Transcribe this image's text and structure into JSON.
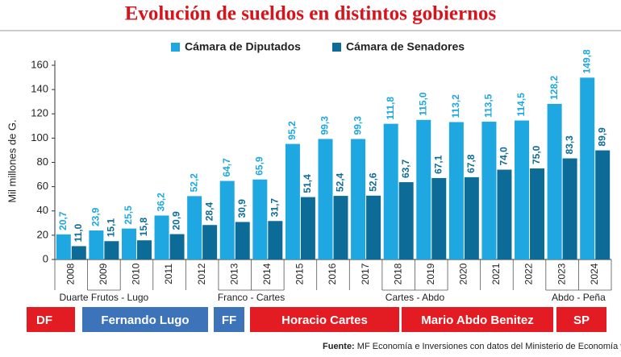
{
  "chart_data": {
    "type": "bar",
    "title": "Evolución de sueldos en distintos gobiernos",
    "y_label": "Mil millones de G.",
    "categories": [
      "2008",
      "2009",
      "2010",
      "2011",
      "2012",
      "2013",
      "2014",
      "2015",
      "2016",
      "2017",
      "2018",
      "2019",
      "2020",
      "2021",
      "2022",
      "2023",
      "2024"
    ],
    "series": [
      {
        "name": "Cámara de Diputados",
        "color": "#1ea7e0",
        "values": [
          20.7,
          23.9,
          25.5,
          36.2,
          52.2,
          64.7,
          65.9,
          95.2,
          99.3,
          99.3,
          111.8,
          115.0,
          113.2,
          113.5,
          114.5,
          128.2,
          149.8
        ],
        "value_labels": [
          "20,7",
          "23,9",
          "25,5",
          "36,2",
          "52,2",
          "64,7",
          "65,9",
          "95,2",
          "99,3",
          "99,3",
          "111,8",
          "115,0",
          "113,2",
          "113,5",
          "114,5",
          "128,2",
          "149,8"
        ]
      },
      {
        "name": "Cámara de Senadores",
        "color": "#0d6c97",
        "values": [
          11.0,
          15.1,
          15.8,
          20.9,
          28.4,
          30.9,
          31.7,
          51.4,
          52.4,
          52.6,
          63.7,
          67.1,
          67.8,
          74.0,
          75.0,
          83.3,
          89.9
        ],
        "value_labels": [
          "11,0",
          "15,1",
          "15,8",
          "20,9",
          "28,4",
          "30,9",
          "31,7",
          "51,4",
          "52,4",
          "52,6",
          "63,7",
          "67,1",
          "67,8",
          "74,0",
          "75,0",
          "83,3",
          "89,9"
        ]
      }
    ],
    "ylim": [
      0,
      160
    ],
    "yticks": [
      0,
      20,
      40,
      60,
      80,
      100,
      120,
      140,
      160
    ],
    "grid": false,
    "periods": [
      "Duarte Frutos - Lugo",
      "Franco - Cartes",
      "Cartes - Abdo",
      "Abdo - Peña"
    ],
    "governments": [
      {
        "label": "DF",
        "color": "#e31b23"
      },
      {
        "label": "Fernando Lugo",
        "color": "#3d73b9"
      },
      {
        "label": "FF",
        "color": "#3d73b9"
      },
      {
        "label": "Horacio Cartes",
        "color": "#e31b23"
      },
      {
        "label": "Mario Abdo Benitez",
        "color": "#e31b23"
      },
      {
        "label": "SP",
        "color": "#e31b23"
      }
    ],
    "source_label": "Fuente:",
    "source_text": "MF Economía e Inversiones con datos del Ministerio de Economía y Finanzas."
  }
}
